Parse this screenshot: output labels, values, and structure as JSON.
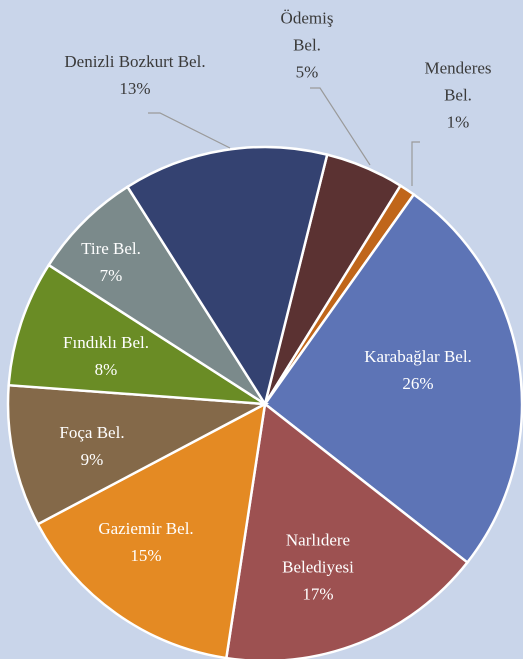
{
  "chart_data": {
    "type": "pie",
    "categories": [
      "Ödemiş Bel.",
      "Menderes Bel.",
      "Karabağlar Bel.",
      "Narlıdere Belediyesi",
      "Gaziemir Bel.",
      "Foça Bel.",
      "Fındıklı Bel.",
      "Tire Bel.",
      "Denizli Bozkurt Bel."
    ],
    "values": [
      5,
      1,
      26,
      17,
      15,
      9,
      8,
      7,
      13
    ],
    "value_labels": [
      "5%",
      "1%",
      "26%",
      "17%",
      "15%",
      "9%",
      "8%",
      "7%",
      "13%"
    ],
    "colors": [
      "#5b3232",
      "#c0661a",
      "#5d74b6",
      "#9d5151",
      "#e48a23",
      "#846949",
      "#6a8c25",
      "#7b8a8b",
      "#344271"
    ]
  }
}
